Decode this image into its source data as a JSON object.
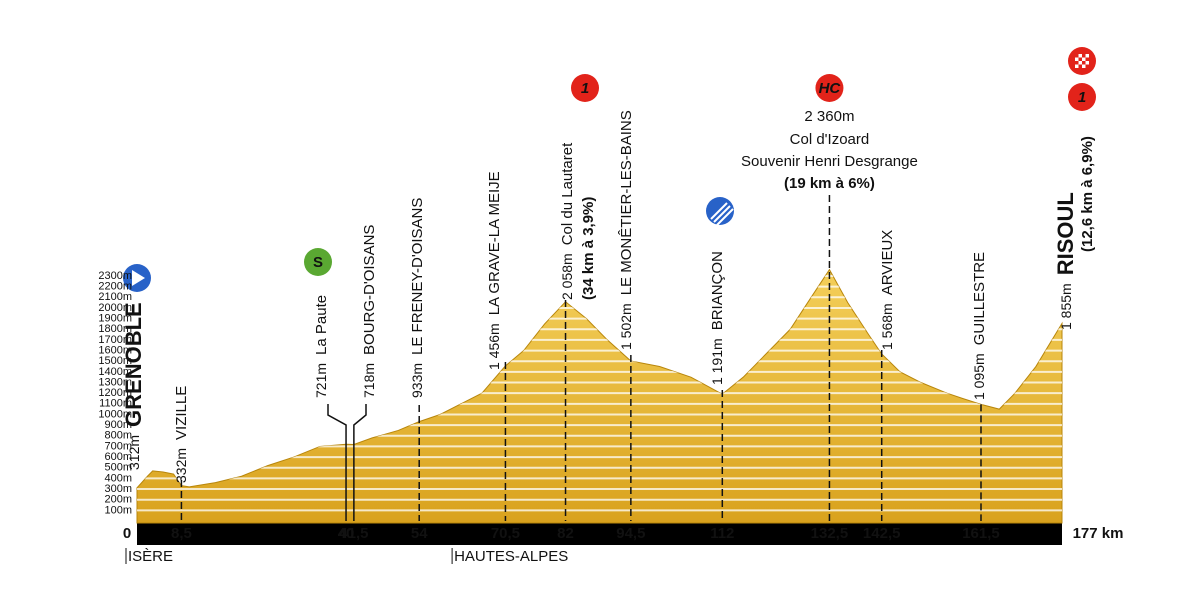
{
  "chart_data": {
    "type": "profile",
    "color": "#e8b631",
    "x": [
      0,
      2,
      3,
      5,
      7,
      8.5,
      10,
      15,
      20,
      25,
      30,
      35,
      40,
      41.5,
      45,
      50,
      54,
      58,
      62,
      66,
      70.5,
      74,
      78,
      82,
      86,
      90,
      94.5,
      100,
      106,
      112,
      116,
      120,
      125,
      129,
      132.5,
      136,
      140,
      142.5,
      146,
      150,
      155,
      158,
      161.5,
      165,
      168,
      172,
      177
    ],
    "values": [
      312,
      420,
      470,
      460,
      440,
      332,
      320,
      360,
      420,
      520,
      600,
      700,
      721,
      718,
      780,
      850,
      933,
      1000,
      1100,
      1200,
      1456,
      1600,
      1850,
      2058,
      1900,
      1700,
      1502,
      1450,
      1350,
      1191,
      1350,
      1550,
      1800,
      2100,
      2360,
      2050,
      1750,
      1568,
      1400,
      1300,
      1200,
      1150,
      1095,
      1050,
      1200,
      1450,
      1855
    ],
    "xlim": [
      0,
      177
    ],
    "ylim": [
      0,
      2300
    ],
    "xticks": [
      0,
      {
        "value": 8.5,
        "label": "8,5"
      },
      40,
      {
        "value": 41.5,
        "label": "41,5"
      },
      54,
      {
        "value": 70.5,
        "label": "70,5"
      },
      82,
      {
        "value": 94.5,
        "label": "94,5"
      },
      112,
      {
        "value": 132.5,
        "label": "132,5"
      },
      {
        "value": 142.5,
        "label": "142,5"
      },
      {
        "value": 161.5,
        "label": "161,5"
      },
      {
        "value": 177,
        "label": "177 km"
      }
    ],
    "yticks": [
      {
        "value": 100,
        "label": "100m"
      },
      {
        "value": 200,
        "label": "200m"
      },
      {
        "value": 300,
        "label": "300m"
      },
      {
        "value": 400,
        "label": "400m"
      },
      {
        "value": 500,
        "label": "500m"
      },
      {
        "value": 600,
        "label": "600m"
      },
      {
        "value": 700,
        "label": "700m"
      },
      {
        "value": 800,
        "label": "800m"
      },
      {
        "value": 900,
        "label": "900m"
      },
      {
        "value": 1000,
        "label": "1000m"
      },
      {
        "value": 1100,
        "label": "1100m"
      },
      {
        "value": 1200,
        "label": "1200m"
      },
      {
        "value": 1300,
        "label": "1300m"
      },
      {
        "value": 1400,
        "label": "1400m"
      },
      {
        "value": 1500,
        "label": "1500m"
      },
      {
        "value": 1600,
        "label": "1600m"
      },
      {
        "value": 1700,
        "label": "1700m"
      },
      {
        "value": 1800,
        "label": "1800m"
      },
      {
        "value": 1900,
        "label": "1900m"
      },
      {
        "value": 2000,
        "label": "2000m"
      },
      {
        "value": 2100,
        "label": "2100m"
      },
      {
        "value": 2200,
        "label": "2200m"
      },
      {
        "value": 2300,
        "label": "2300m"
      }
    ],
    "grid": true,
    "waypoints": [
      {
        "km": 0,
        "altitude": {
          "value": 312,
          "label": "312m"
        },
        "name": "GRENOBLE"
      },
      {
        "km": 8.5,
        "altitude": {
          "value": 332,
          "label": "332m"
        },
        "name": "VIZILLE"
      },
      {
        "km": 40,
        "altitude": {
          "value": 721,
          "label": "721m"
        },
        "name": "La Paute"
      },
      {
        "km": 41.5,
        "altitude": {
          "value": 718,
          "label": "718m"
        },
        "name": "BOURG-D'OISANS"
      },
      {
        "km": 54,
        "altitude": {
          "value": 933,
          "label": "933m"
        },
        "name": "LE FRENEY-D'OISANS"
      },
      {
        "km": 70.5,
        "altitude": {
          "value": 1456,
          "label": "1 456m"
        },
        "name": "LA GRAVE-LA MEIJE"
      },
      {
        "km": 82,
        "altitude": {
          "value": 2058,
          "label": "2 058m"
        },
        "name": "Col du Lautaret",
        "climb": "(34 km à 3,9%)",
        "category": "1"
      },
      {
        "km": 94.5,
        "altitude": {
          "value": 1502,
          "label": "1 502m"
        },
        "name": "LE MONÊTIER-LES-BAINS"
      },
      {
        "km": 112,
        "altitude": {
          "value": 1191,
          "label": "1 191m"
        },
        "name": "BRIANÇON"
      },
      {
        "km": 132.5,
        "altitude": {
          "value": 2360,
          "label": "2 360m"
        },
        "name": "Col d'Izoard",
        "subtitle": "Souvenir Henri Desgrange",
        "climb": "(19 km à 6%)",
        "category": "HC"
      },
      {
        "km": 142.5,
        "altitude": {
          "value": 1568,
          "label": "1 568m"
        },
        "name": "ARVIEUX"
      },
      {
        "km": 161.5,
        "altitude": {
          "value": 1095,
          "label": "1 095m"
        },
        "name": "GUILLESTRE"
      },
      {
        "km": 177,
        "altitude": {
          "value": 1855,
          "label": "1 855m"
        },
        "name": "RISOUL",
        "climb": "(12,6 km à 6,9%)",
        "category": "1"
      }
    ],
    "sprint": "S",
    "regions": [
      {
        "km": 0,
        "name": "ISÈRE"
      },
      {
        "km": 62.4,
        "name": "HAUTES-ALPES"
      }
    ]
  }
}
